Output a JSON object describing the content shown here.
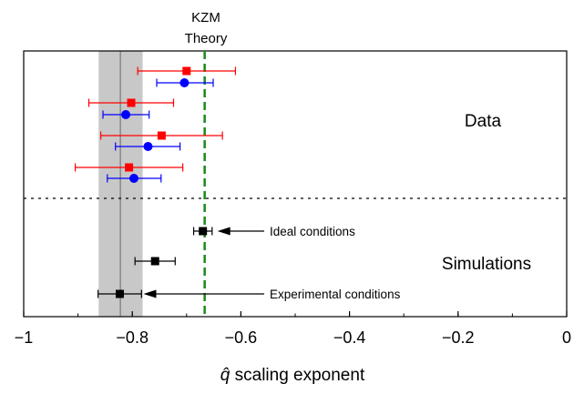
{
  "chart_data": {
    "type": "scatter",
    "xlabel_prefix": "q̂",
    "xlabel_suffix": " scaling exponent",
    "xlim": [
      -1,
      0
    ],
    "ticks": [
      {
        "value": -1,
        "label": "−1"
      },
      {
        "value": -0.8,
        "label": "−0.8"
      },
      {
        "value": -0.6,
        "label": "−0.6"
      },
      {
        "value": -0.4,
        "label": "−0.4"
      },
      {
        "value": -0.2,
        "label": "−0.2"
      },
      {
        "value": 0,
        "label": "0"
      }
    ],
    "reference_line": {
      "label_line1": "KZM",
      "label_line2": "Theory",
      "x": -0.6667,
      "color": "#1a8a1a"
    },
    "shaded_band": {
      "x_center": -0.822,
      "x_low": -0.862,
      "x_high": -0.781,
      "color": "#c8c8c8"
    },
    "section_labels": {
      "data": "Data",
      "simulations": "Simulations"
    },
    "series": [
      {
        "marker": "square",
        "color": "#ff0000",
        "points": [
          {
            "x": -0.7,
            "xerr_low": 0.09,
            "xerr_high": 0.09
          },
          {
            "x": -0.802,
            "xerr_low": 0.078,
            "xerr_high": 0.078
          },
          {
            "x": -0.746,
            "xerr_low": 0.112,
            "xerr_high": 0.112
          },
          {
            "x": -0.806,
            "xerr_low": 0.099,
            "xerr_high": 0.099
          }
        ]
      },
      {
        "marker": "circle",
        "color": "#0000ff",
        "points": [
          {
            "x": -0.704,
            "xerr_low": 0.051,
            "xerr_high": 0.053
          },
          {
            "x": -0.812,
            "xerr_low": 0.042,
            "xerr_high": 0.043
          },
          {
            "x": -0.771,
            "xerr_low": 0.06,
            "xerr_high": 0.059
          },
          {
            "x": -0.797,
            "xerr_low": 0.049,
            "xerr_high": 0.05
          }
        ]
      },
      {
        "marker": "square",
        "color": "#000000",
        "points": [
          {
            "x": -0.67,
            "xerr_low": 0.017,
            "xerr_high": 0.017
          },
          {
            "x": -0.758,
            "xerr_low": 0.037,
            "xerr_high": 0.037
          },
          {
            "x": -0.823,
            "xerr_low": 0.04,
            "xerr_high": 0.04
          }
        ]
      }
    ],
    "annotations": [
      {
        "text": "Ideal conditions",
        "target_x": -0.67
      },
      {
        "text": "Experimental conditions",
        "target_x": -0.823
      }
    ]
  }
}
